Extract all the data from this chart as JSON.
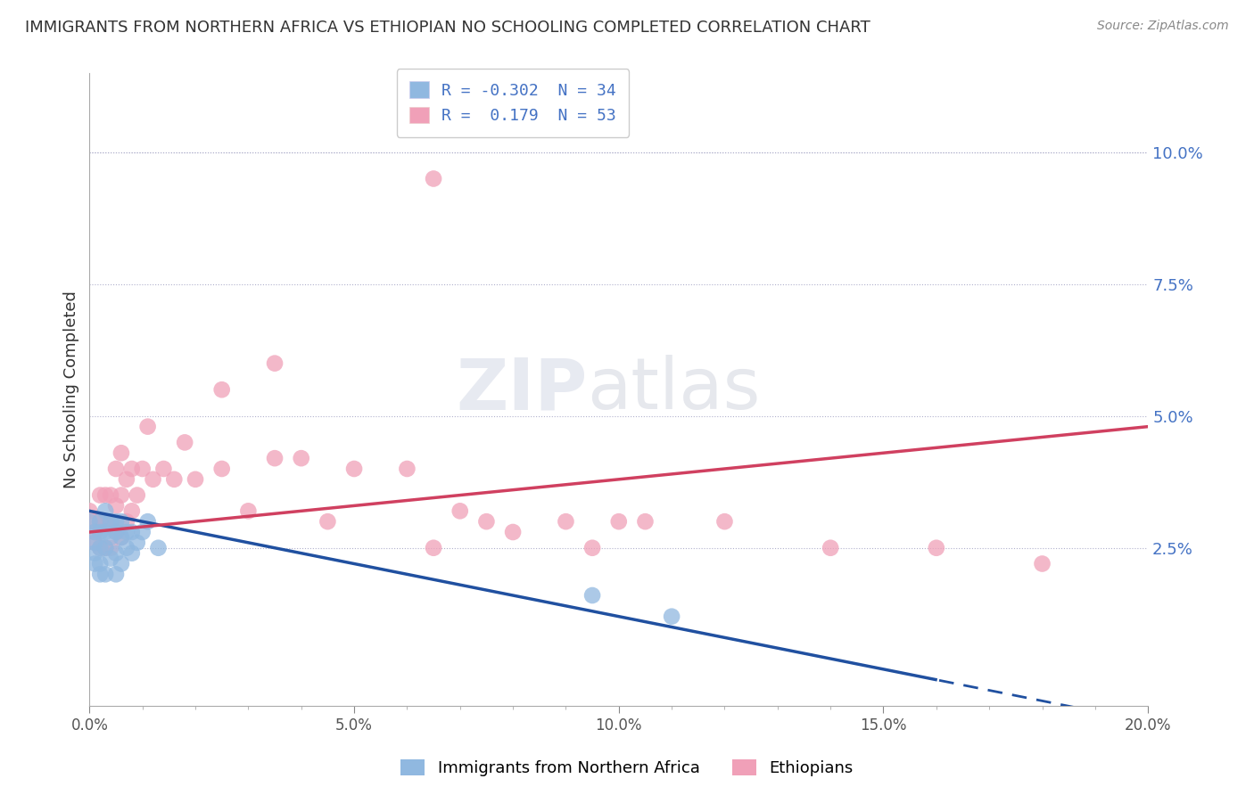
{
  "title": "IMMIGRANTS FROM NORTHERN AFRICA VS ETHIOPIAN NO SCHOOLING COMPLETED CORRELATION CHART",
  "source": "Source: ZipAtlas.com",
  "ylabel": "No Schooling Completed",
  "legend_blue_R": "-0.302",
  "legend_blue_N": "34",
  "legend_pink_R": "0.179",
  "legend_pink_N": "53",
  "blue_color": "#90b8e0",
  "pink_color": "#f0a0b8",
  "trend_blue": "#2050a0",
  "trend_pink": "#d04060",
  "xlim": [
    0.0,
    0.2
  ],
  "ylim": [
    -0.005,
    0.115
  ],
  "plot_ylim": [
    0.0,
    0.115
  ],
  "x_ticks": [
    0.0,
    0.05,
    0.1,
    0.15,
    0.2
  ],
  "y_ticks_right": [
    0.025,
    0.05,
    0.075,
    0.1
  ],
  "y_tick_labels": [
    "2.5%",
    "5.0%",
    "7.5%",
    "10.0%"
  ],
  "x_tick_labels": [
    "0.0%",
    "5.0%",
    "10.0%",
    "15.0%",
    "20.0%"
  ],
  "blue_x": [
    0.0,
    0.001,
    0.001,
    0.001,
    0.001,
    0.002,
    0.002,
    0.002,
    0.002,
    0.002,
    0.003,
    0.003,
    0.003,
    0.003,
    0.004,
    0.004,
    0.004,
    0.005,
    0.005,
    0.005,
    0.005,
    0.006,
    0.006,
    0.006,
    0.007,
    0.007,
    0.008,
    0.008,
    0.009,
    0.01,
    0.011,
    0.013,
    0.095,
    0.11
  ],
  "blue_y": [
    0.03,
    0.028,
    0.026,
    0.024,
    0.022,
    0.03,
    0.028,
    0.025,
    0.022,
    0.02,
    0.032,
    0.028,
    0.025,
    0.02,
    0.03,
    0.027,
    0.023,
    0.03,
    0.028,
    0.024,
    0.02,
    0.03,
    0.027,
    0.022,
    0.028,
    0.025,
    0.028,
    0.024,
    0.026,
    0.028,
    0.03,
    0.025,
    0.016,
    0.012
  ],
  "pink_x": [
    0.0,
    0.001,
    0.001,
    0.001,
    0.002,
    0.002,
    0.002,
    0.003,
    0.003,
    0.003,
    0.004,
    0.004,
    0.004,
    0.005,
    0.005,
    0.005,
    0.006,
    0.006,
    0.006,
    0.007,
    0.007,
    0.008,
    0.008,
    0.009,
    0.01,
    0.011,
    0.012,
    0.014,
    0.016,
    0.018,
    0.02,
    0.025,
    0.03,
    0.035,
    0.04,
    0.045,
    0.05,
    0.06,
    0.065,
    0.07,
    0.075,
    0.08,
    0.09,
    0.095,
    0.1,
    0.105,
    0.12,
    0.14,
    0.16,
    0.18,
    0.025,
    0.035,
    0.065
  ],
  "pink_y": [
    0.032,
    0.03,
    0.028,
    0.026,
    0.035,
    0.03,
    0.025,
    0.035,
    0.03,
    0.025,
    0.035,
    0.03,
    0.025,
    0.04,
    0.033,
    0.028,
    0.043,
    0.035,
    0.027,
    0.038,
    0.03,
    0.04,
    0.032,
    0.035,
    0.04,
    0.048,
    0.038,
    0.04,
    0.038,
    0.045,
    0.038,
    0.04,
    0.032,
    0.042,
    0.042,
    0.03,
    0.04,
    0.04,
    0.025,
    0.032,
    0.03,
    0.028,
    0.03,
    0.025,
    0.03,
    0.03,
    0.03,
    0.025,
    0.025,
    0.022,
    0.055,
    0.06,
    0.095
  ],
  "pink_outlier_x": [
    0.045
  ],
  "pink_outlier_y": [
    0.095
  ],
  "watermark_zip": "ZIP",
  "watermark_atlas": "atlas"
}
